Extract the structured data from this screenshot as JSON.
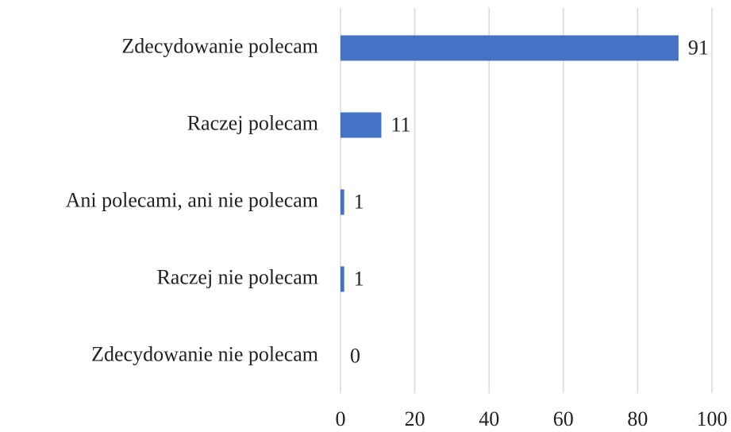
{
  "chart_data": {
    "type": "bar",
    "orientation": "horizontal",
    "categories": [
      "Zdecydowanie polecam",
      "Raczej polecam",
      "Ani polecami, ani nie polecam",
      "Raczej nie polecam",
      "Zdecydowanie nie polecam"
    ],
    "values": [
      91,
      11,
      1,
      1,
      0
    ],
    "color": "#4472c4",
    "xlim": [
      0,
      100
    ],
    "xticks": [
      0,
      20,
      40,
      60,
      80,
      100
    ],
    "grid": true
  }
}
